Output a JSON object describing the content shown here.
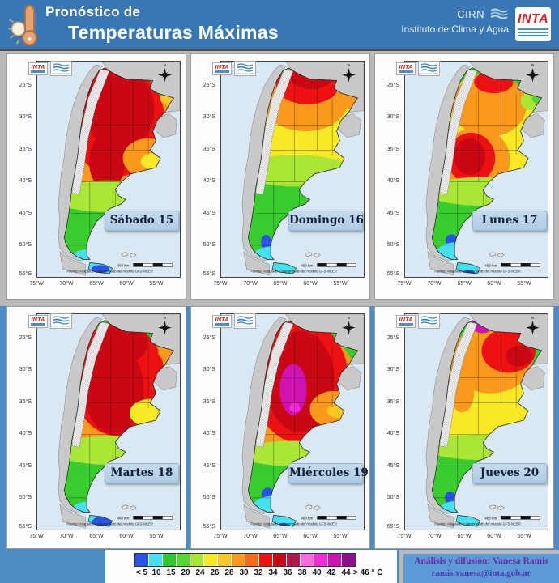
{
  "header": {
    "title_line1": "Pronóstico de",
    "title_line2": "Temperaturas Máximas",
    "cirn": "CIRN",
    "institute": "Instituto de Clima y Agua",
    "inta": "INTA"
  },
  "map": {
    "inta_label": "INTA",
    "institute_label": "Instituto de Clima y Agua",
    "north": "N",
    "scale_label": "400 km",
    "fuente": "Fuente: Adaptado e interpretado del modelo GFS-NCEP.",
    "lat_labels": [
      "25°S",
      "30°S",
      "35°S",
      "40°S",
      "45°S",
      "50°S",
      "55°S"
    ],
    "lon_labels": [
      "75°W",
      "70°W",
      "65°W",
      "60°W",
      "55°W"
    ]
  },
  "panels": [
    {
      "day": "Sábado 15",
      "base": "#38cc2c",
      "blobs": [
        [
          105,
          100,
          82,
          82,
          "#f99a1c"
        ],
        [
          106,
          75,
          64,
          70,
          "#ee1111"
        ],
        [
          110,
          60,
          46,
          52,
          "#c90813"
        ],
        [
          93,
          126,
          24,
          36,
          "#c90813"
        ],
        [
          148,
          122,
          34,
          25,
          "#f99a1c"
        ],
        [
          153,
          126,
          15,
          10,
          "#f7e926"
        ],
        [
          175,
          47,
          11,
          8,
          "#f8c723"
        ],
        [
          95,
          170,
          78,
          20,
          "#a9e635"
        ],
        [
          78,
          248,
          34,
          12,
          "#45e1f0"
        ],
        [
          88,
          263,
          28,
          8,
          "#45e1f0"
        ],
        [
          84,
          262,
          12,
          5,
          "#2952e6"
        ]
      ]
    },
    {
      "day": "Domingo 16",
      "base": "#38cc2c",
      "blobs": [
        [
          108,
          88,
          78,
          58,
          "#f7e926"
        ],
        [
          112,
          52,
          56,
          36,
          "#f99a1c"
        ],
        [
          115,
          30,
          42,
          24,
          "#ee1111"
        ],
        [
          120,
          20,
          28,
          15,
          "#c90813"
        ],
        [
          112,
          9,
          6,
          5,
          "#cf12b2"
        ],
        [
          170,
          50,
          14,
          10,
          "#f99a1c"
        ],
        [
          100,
          138,
          76,
          20,
          "#a9e635"
        ],
        [
          60,
          228,
          7,
          9,
          "#2952e6"
        ],
        [
          72,
          246,
          30,
          13,
          "#45e1f0"
        ],
        [
          88,
          263,
          28,
          8,
          "#45e1f0"
        ]
      ]
    },
    {
      "day": "Lunes 17",
      "base": "#38cc2c",
      "blobs": [
        [
          106,
          92,
          80,
          72,
          "#f7e926"
        ],
        [
          112,
          55,
          50,
          40,
          "#f99a1c"
        ],
        [
          95,
          125,
          45,
          42,
          "#f99a1c"
        ],
        [
          118,
          26,
          26,
          14,
          "#ee1111"
        ],
        [
          88,
          122,
          32,
          32,
          "#ee1111"
        ],
        [
          86,
          120,
          21,
          23,
          "#c90813"
        ],
        [
          170,
          50,
          16,
          12,
          "#a9e635"
        ],
        [
          177,
          47,
          8,
          6,
          "#55d733"
        ],
        [
          100,
          164,
          72,
          18,
          "#a9e635"
        ],
        [
          62,
          226,
          8,
          8,
          "#2952e6"
        ],
        [
          70,
          242,
          28,
          14,
          "#45e1f0"
        ],
        [
          88,
          263,
          28,
          8,
          "#45e1f0"
        ],
        [
          84,
          268,
          10,
          4,
          "#2952e6"
        ]
      ]
    },
    {
      "day": "Martes 18",
      "base": "#38cc2c",
      "blobs": [
        [
          105,
          102,
          82,
          86,
          "#f99a1c"
        ],
        [
          108,
          82,
          62,
          72,
          "#ee1111"
        ],
        [
          102,
          95,
          40,
          56,
          "#c90813"
        ],
        [
          116,
          35,
          32,
          26,
          "#c90813"
        ],
        [
          151,
          125,
          28,
          18,
          "#f7e926"
        ],
        [
          173,
          48,
          12,
          9,
          "#f99a1c"
        ],
        [
          96,
          172,
          74,
          18,
          "#a9e635"
        ],
        [
          76,
          248,
          32,
          12,
          "#45e1f0"
        ],
        [
          88,
          263,
          28,
          8,
          "#45e1f0"
        ],
        [
          86,
          262,
          13,
          6,
          "#2952e6"
        ]
      ]
    },
    {
      "day": "Miércoles 19",
      "base": "#38cc2c",
      "blobs": [
        [
          105,
          105,
          82,
          88,
          "#f99a1c"
        ],
        [
          106,
          85,
          64,
          78,
          "#ee1111"
        ],
        [
          105,
          85,
          46,
          64,
          "#c90813"
        ],
        [
          96,
          95,
          18,
          32,
          "#cf12b2"
        ],
        [
          98,
          118,
          7,
          6,
          "#f32cd8"
        ],
        [
          150,
          120,
          32,
          23,
          "#f99a1c"
        ],
        [
          156,
          122,
          15,
          9,
          "#f8c723"
        ],
        [
          96,
          176,
          72,
          16,
          "#a9e635"
        ],
        [
          62,
          228,
          8,
          9,
          "#2952e6"
        ],
        [
          72,
          244,
          30,
          15,
          "#45e1f0"
        ],
        [
          88,
          263,
          28,
          8,
          "#45e1f0"
        ],
        [
          82,
          268,
          10,
          4,
          "#2952e6"
        ]
      ]
    },
    {
      "day": "Jueves 20",
      "base": "#38cc2c",
      "blobs": [
        [
          106,
          105,
          80,
          66,
          "#f7e926"
        ],
        [
          114,
          58,
          56,
          42,
          "#f99a1c"
        ],
        [
          138,
          46,
          36,
          28,
          "#ee1111"
        ],
        [
          152,
          53,
          18,
          13,
          "#c90813"
        ],
        [
          103,
          13,
          15,
          11,
          "#cf12b2"
        ],
        [
          102,
          8,
          9,
          6,
          "#8b0f8b"
        ],
        [
          76,
          98,
          16,
          26,
          "#f99a1c"
        ],
        [
          100,
          168,
          74,
          16,
          "#a9e635"
        ],
        [
          60,
          232,
          7,
          8,
          "#2952e6"
        ],
        [
          70,
          248,
          26,
          12,
          "#45e1f0"
        ],
        [
          88,
          263,
          28,
          8,
          "#45e1f0"
        ]
      ]
    }
  ],
  "legend": {
    "labels": [
      "< 5",
      "10",
      "15",
      "20",
      "24",
      "26",
      "28",
      "30",
      "32",
      "34",
      "36",
      "38",
      "40",
      "42",
      "44",
      "> 46 ° C"
    ],
    "colors": [
      "#2952e6",
      "#45e1f0",
      "#2dc82d",
      "#55d733",
      "#a9e635",
      "#f7e926",
      "#f8c723",
      "#f99a1c",
      "#f86b10",
      "#ee1111",
      "#c90813",
      "#b0174f",
      "#f96ce0",
      "#f32cd8",
      "#cf12b2",
      "#8b0f8b"
    ]
  },
  "credits": {
    "line1": "Análisis y difusión: Vanesa Ramis",
    "line2": "ramis.vanesa@inta.gob.ar"
  },
  "colors": {
    "header_bg": "#3877b4",
    "blue_band": "#4b8cc5",
    "credits_bg": "#5b9bd5",
    "ocean": "#d9e8f2"
  }
}
